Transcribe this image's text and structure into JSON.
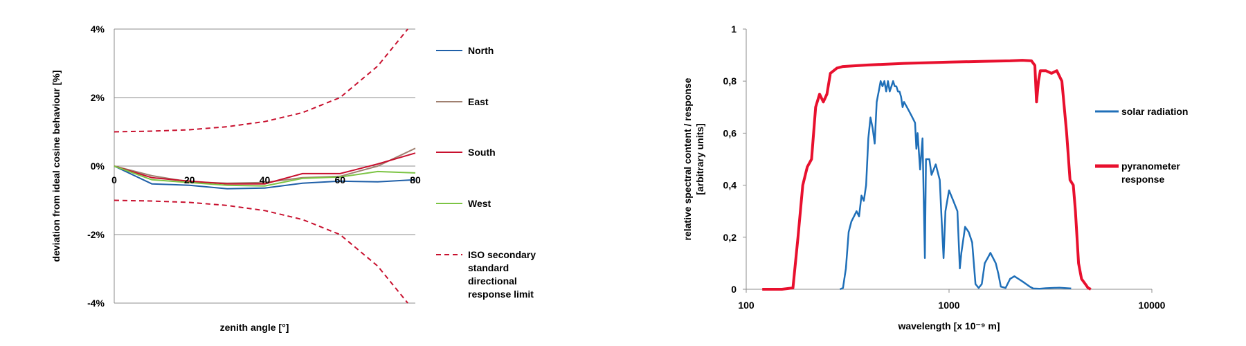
{
  "chart_data": [
    {
      "type": "line",
      "xlabel": "zenith angle [°]",
      "ylabel": "deviation from ideal cosine behaviour [%]",
      "xlim": [
        0,
        80
      ],
      "ylim": [
        -4,
        4
      ],
      "x_ticks": [
        "0",
        "20",
        "40",
        "60",
        "80"
      ],
      "y_ticks": [
        "4%",
        "2%",
        "0%",
        "-2%",
        "-4%"
      ],
      "grid": "horizontal",
      "legend_position": "right",
      "series": [
        {
          "name": "North",
          "color": "#1F5FA8",
          "style": "solid",
          "points": [
            [
              0,
              0
            ],
            [
              10,
              -0.52
            ],
            [
              20,
              -0.56
            ],
            [
              30,
              -0.66
            ],
            [
              40,
              -0.64
            ],
            [
              50,
              -0.5
            ],
            [
              60,
              -0.44
            ],
            [
              70,
              -0.46
            ],
            [
              80,
              -0.4
            ]
          ]
        },
        {
          "name": "East",
          "color": "#A08070",
          "style": "solid",
          "points": [
            [
              0,
              0
            ],
            [
              10,
              -0.28
            ],
            [
              20,
              -0.46
            ],
            [
              30,
              -0.5
            ],
            [
              40,
              -0.48
            ],
            [
              50,
              -0.34
            ],
            [
              60,
              -0.3
            ],
            [
              70,
              0
            ],
            [
              80,
              0.52
            ]
          ]
        },
        {
          "name": "South",
          "color": "#C8102E",
          "style": "solid",
          "points": [
            [
              0,
              0
            ],
            [
              10,
              -0.34
            ],
            [
              20,
              -0.44
            ],
            [
              30,
              -0.52
            ],
            [
              40,
              -0.52
            ],
            [
              50,
              -0.22
            ],
            [
              60,
              -0.22
            ],
            [
              70,
              0.06
            ],
            [
              80,
              0.38
            ]
          ]
        },
        {
          "name": "West",
          "color": "#7CC444",
          "style": "solid",
          "points": [
            [
              0,
              0
            ],
            [
              10,
              -0.4
            ],
            [
              20,
              -0.48
            ],
            [
              30,
              -0.56
            ],
            [
              40,
              -0.58
            ],
            [
              50,
              -0.36
            ],
            [
              60,
              -0.32
            ],
            [
              70,
              -0.16
            ],
            [
              80,
              -0.2
            ]
          ]
        },
        {
          "name": "ISO secondary standard directional response limit",
          "color": "#C8102E",
          "style": "dashed",
          "legend_lines": [
            "ISO secondary",
            "standard",
            "directional",
            "response limit"
          ],
          "points_upper": [
            [
              0,
              1
            ],
            [
              10,
              1.02
            ],
            [
              20,
              1.06
            ],
            [
              30,
              1.15
            ],
            [
              40,
              1.3
            ],
            [
              50,
              1.56
            ],
            [
              60,
              2
            ],
            [
              70,
              2.92
            ],
            [
              78,
              4
            ]
          ],
          "points_lower": [
            [
              0,
              -1
            ],
            [
              10,
              -1.02
            ],
            [
              20,
              -1.06
            ],
            [
              30,
              -1.15
            ],
            [
              40,
              -1.3
            ],
            [
              50,
              -1.56
            ],
            [
              60,
              -2
            ],
            [
              70,
              -2.92
            ],
            [
              78,
              -4
            ]
          ]
        }
      ]
    },
    {
      "type": "line",
      "xlabel": "wavelength [x 10⁻⁹ m]",
      "ylabel": "relative spectral content / response",
      "ylabel2": "[arbitrary units]",
      "xscale": "log",
      "xlim": [
        100,
        10000
      ],
      "ylim": [
        0,
        1
      ],
      "x_ticks": [
        "100",
        "1000",
        "10000"
      ],
      "y_ticks": [
        "1",
        "0,8",
        "0,6",
        "0,4",
        "0,2",
        "0"
      ],
      "grid": "none",
      "legend_position": "right",
      "series": [
        {
          "name": "solar radiation",
          "color": "#1F6FB8",
          "style": "solid",
          "legend_lines": [
            "solar radiation"
          ],
          "points": [
            [
              290,
              0
            ],
            [
              300,
              0.005
            ],
            [
              310,
              0.08
            ],
            [
              320,
              0.22
            ],
            [
              330,
              0.26
            ],
            [
              340,
              0.28
            ],
            [
              350,
              0.3
            ],
            [
              360,
              0.28
            ],
            [
              370,
              0.36
            ],
            [
              380,
              0.34
            ],
            [
              390,
              0.4
            ],
            [
              400,
              0.58
            ],
            [
              410,
              0.66
            ],
            [
              420,
              0.62
            ],
            [
              430,
              0.56
            ],
            [
              440,
              0.72
            ],
            [
              450,
              0.76
            ],
            [
              460,
              0.8
            ],
            [
              470,
              0.78
            ],
            [
              480,
              0.8
            ],
            [
              490,
              0.76
            ],
            [
              500,
              0.8
            ],
            [
              510,
              0.76
            ],
            [
              520,
              0.78
            ],
            [
              530,
              0.8
            ],
            [
              540,
              0.78
            ],
            [
              550,
              0.78
            ],
            [
              560,
              0.76
            ],
            [
              570,
              0.76
            ],
            [
              580,
              0.74
            ],
            [
              590,
              0.7
            ],
            [
              600,
              0.72
            ],
            [
              620,
              0.7
            ],
            [
              640,
              0.68
            ],
            [
              660,
              0.66
            ],
            [
              680,
              0.64
            ],
            [
              690,
              0.54
            ],
            [
              700,
              0.6
            ],
            [
              720,
              0.46
            ],
            [
              740,
              0.58
            ],
            [
              760,
              0.12
            ],
            [
              770,
              0.5
            ],
            [
              800,
              0.5
            ],
            [
              820,
              0.44
            ],
            [
              860,
              0.48
            ],
            [
              900,
              0.42
            ],
            [
              920,
              0.26
            ],
            [
              940,
              0.12
            ],
            [
              960,
              0.3
            ],
            [
              1000,
              0.38
            ],
            [
              1050,
              0.34
            ],
            [
              1100,
              0.3
            ],
            [
              1130,
              0.08
            ],
            [
              1150,
              0.14
            ],
            [
              1200,
              0.24
            ],
            [
              1250,
              0.22
            ],
            [
              1300,
              0.18
            ],
            [
              1350,
              0.02
            ],
            [
              1400,
              0.005
            ],
            [
              1450,
              0.02
            ],
            [
              1500,
              0.1
            ],
            [
              1550,
              0.12
            ],
            [
              1600,
              0.14
            ],
            [
              1650,
              0.12
            ],
            [
              1700,
              0.1
            ],
            [
              1750,
              0.06
            ],
            [
              1800,
              0.01
            ],
            [
              1900,
              0.005
            ],
            [
              2000,
              0.04
            ],
            [
              2100,
              0.05
            ],
            [
              2200,
              0.04
            ],
            [
              2300,
              0.03
            ],
            [
              2400,
              0.02
            ],
            [
              2500,
              0.01
            ],
            [
              2600,
              0.003
            ],
            [
              2800,
              0.002
            ],
            [
              3000,
              0.004
            ],
            [
              3500,
              0.006
            ],
            [
              4000,
              0.003
            ]
          ]
        },
        {
          "name": "pyranometer response",
          "color": "#E8102E",
          "style": "solid",
          "legend_lines": [
            "pyranometer",
            "response"
          ],
          "points": [
            [
              120,
              0
            ],
            [
              150,
              0
            ],
            [
              170,
              0.005
            ],
            [
              180,
              0.2
            ],
            [
              190,
              0.4
            ],
            [
              200,
              0.47
            ],
            [
              210,
              0.5
            ],
            [
              220,
              0.7
            ],
            [
              230,
              0.75
            ],
            [
              240,
              0.72
            ],
            [
              250,
              0.75
            ],
            [
              260,
              0.83
            ],
            [
              280,
              0.85
            ],
            [
              300,
              0.856
            ],
            [
              400,
              0.862
            ],
            [
              600,
              0.868
            ],
            [
              1000,
              0.873
            ],
            [
              1500,
              0.876
            ],
            [
              2000,
              0.878
            ],
            [
              2300,
              0.88
            ],
            [
              2550,
              0.878
            ],
            [
              2650,
              0.86
            ],
            [
              2700,
              0.72
            ],
            [
              2760,
              0.8
            ],
            [
              2820,
              0.84
            ],
            [
              3000,
              0.84
            ],
            [
              3200,
              0.83
            ],
            [
              3400,
              0.84
            ],
            [
              3600,
              0.8
            ],
            [
              3800,
              0.6
            ],
            [
              3950,
              0.42
            ],
            [
              4100,
              0.4
            ],
            [
              4200,
              0.3
            ],
            [
              4350,
              0.1
            ],
            [
              4500,
              0.04
            ],
            [
              4700,
              0.02
            ],
            [
              4850,
              0.005
            ],
            [
              5000,
              0
            ]
          ]
        }
      ]
    }
  ]
}
